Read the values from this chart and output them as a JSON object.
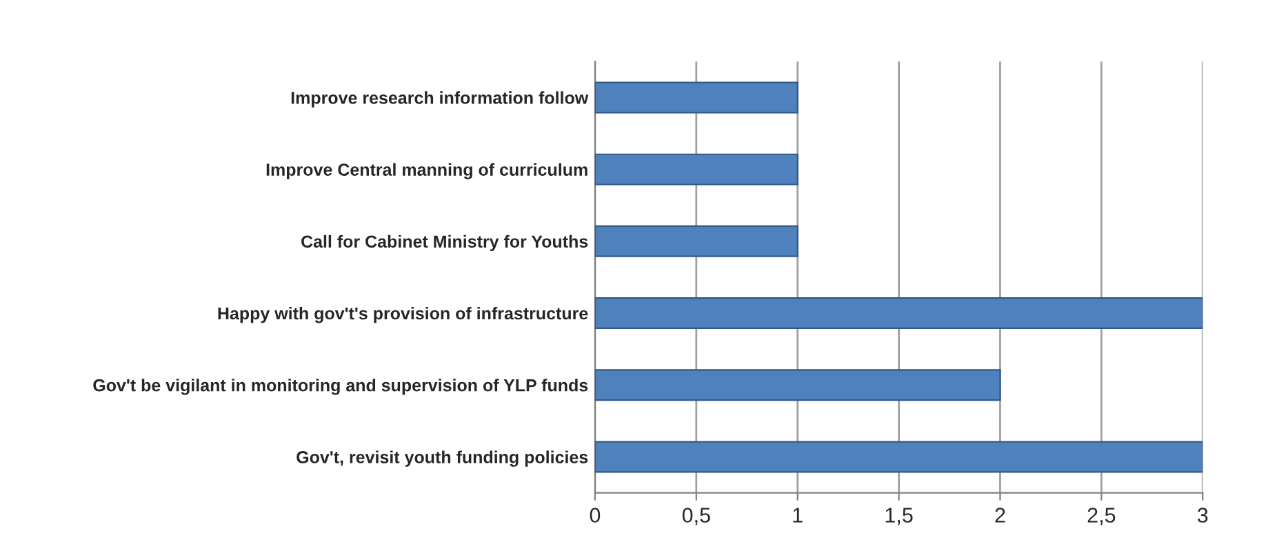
{
  "chart_data": {
    "type": "bar",
    "orientation": "horizontal",
    "categories": [
      "Improve research information follow",
      "Improve Central manning of curriculum",
      "Call for Cabinet Ministry for Youths",
      "Happy with gov't's provision of infrastructure",
      "Gov't be vigilant in monitoring and supervision of YLP funds",
      "Gov't, revisit youth funding policies"
    ],
    "values": [
      1,
      1,
      1,
      3,
      2,
      3
    ],
    "color": "#4f81bd",
    "xlim": [
      0,
      3
    ],
    "xticks": [
      0,
      {
        "value": 0.5,
        "label": "0,5"
      },
      1,
      {
        "value": 1.5,
        "label": "1,5"
      },
      2,
      {
        "value": 2.5,
        "label": "2,5"
      },
      3
    ],
    "grid": "x"
  }
}
